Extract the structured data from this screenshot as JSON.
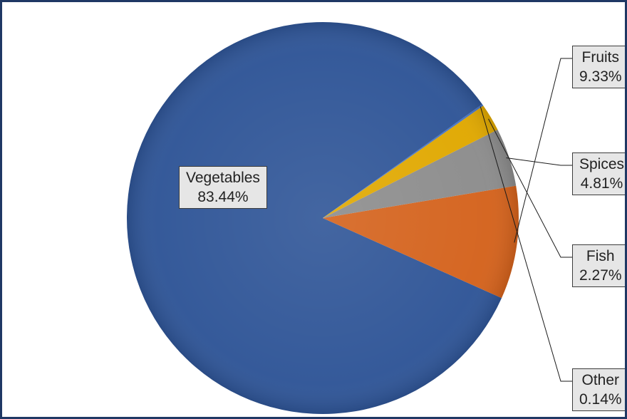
{
  "chart_data": {
    "type": "pie",
    "title": "",
    "slices": [
      {
        "label": "Vegetables",
        "value": 83.44,
        "value_label": "83.44%",
        "color": "#2f5597",
        "label_position": "inside"
      },
      {
        "label": "Fruits",
        "value": 9.33,
        "value_label": "9.33%",
        "color": "#d4621c",
        "label_position": "outside"
      },
      {
        "label": "Spices",
        "value": 4.81,
        "value_label": "4.81%",
        "color": "#8c8c8c",
        "label_position": "outside"
      },
      {
        "label": "Fish",
        "value": 2.27,
        "value_label": "2.27%",
        "color": "#e0a800",
        "label_position": "outside"
      },
      {
        "label": "Other",
        "value": 0.14,
        "value_label": "0.14%",
        "color": "#4472c4",
        "label_position": "outside"
      }
    ],
    "legend": "none",
    "border_color": "#1f3864"
  }
}
